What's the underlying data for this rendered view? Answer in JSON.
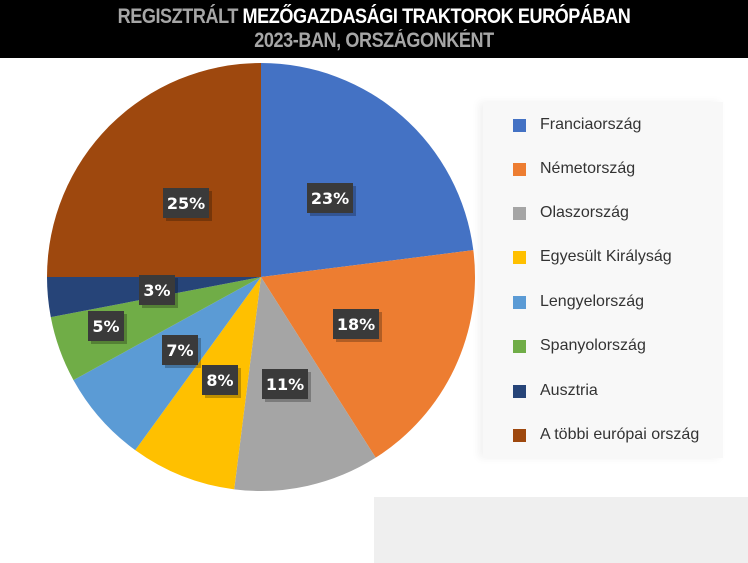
{
  "header": {
    "title_part1": "REGISZTRÁLT",
    "title_part2": "MEZŐGAZDASÁGI TRAKTOROK EURÓPÁBAN",
    "subtitle": "2023-BAN, ORSZÁGONKÉNT"
  },
  "chart_data": {
    "type": "pie",
    "title": "REGISZTRÁLT MEZŐGAZDASÁGI TRAKTOROK EURÓPÁBAN 2023-BAN, ORSZÁGONKÉNT",
    "categories": [
      "Franciaország",
      "Németország",
      "Olaszország",
      "Egyesült Királyság",
      "Lengyelország",
      "Spanyolország",
      "Ausztria",
      "A többi európai ország"
    ],
    "values": [
      23,
      18,
      11,
      8,
      7,
      5,
      3,
      25
    ],
    "unit": "%",
    "data_labels": [
      "23%",
      "18%",
      "11%",
      "8%",
      "7%",
      "5%",
      "3%",
      "25%"
    ],
    "colors": [
      "#4472c4",
      "#ed7d31",
      "#a5a5a5",
      "#ffc000",
      "#5b9bd5",
      "#70ad47",
      "#264478",
      "#9e480e"
    ],
    "start_angle": "12 o'clock",
    "direction": "clockwise",
    "legend_position": "right"
  },
  "legend": {
    "items": [
      {
        "label": "Franciaország",
        "color": "#4472c4"
      },
      {
        "label": "Németország",
        "color": "#ed7d31"
      },
      {
        "label": "Olaszország",
        "color": "#a5a5a5"
      },
      {
        "label": "Egyesült Királyság",
        "color": "#ffc000"
      },
      {
        "label": "Lengyelország",
        "color": "#5b9bd5"
      },
      {
        "label": "Spanyolország",
        "color": "#70ad47"
      },
      {
        "label": "Ausztria",
        "color": "#264478"
      },
      {
        "label": "A többi európai ország",
        "color": "#9e480e"
      }
    ]
  }
}
